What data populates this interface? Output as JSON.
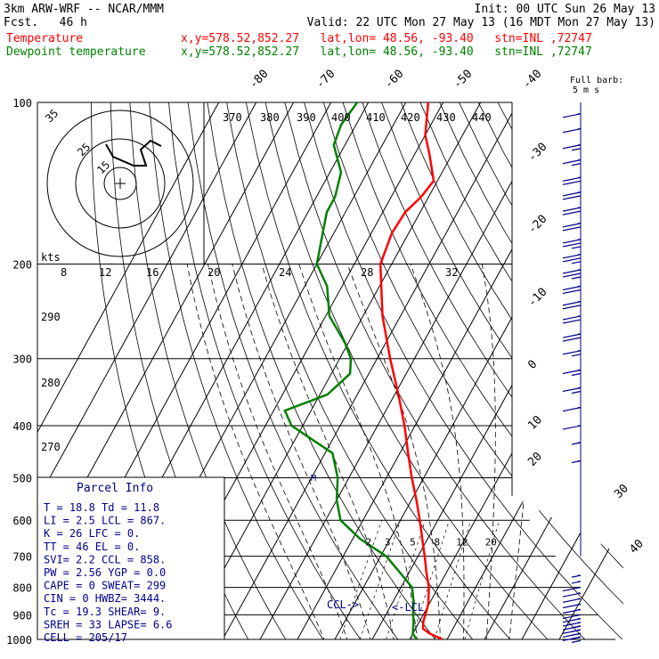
{
  "header": {
    "model_line": "3km ARW-WRF -- NCAR/MMM",
    "init_line": "Init: 00 UTC Sun 26 May 13",
    "fcst_line": "Fcst.   46 h",
    "valid_line": "Valid: 22 UTC Mon 27 May 13 (16 MDT Mon 27 May 13)",
    "temperature_label": "Temperature",
    "dewpoint_label": "Dewpoint temperature",
    "location_text": "x,y=578.52,852.27   lat,lon= 48.56, -93.40   stn=INL ,72747",
    "colors": {
      "temperature": "#ff0000",
      "dewpoint": "#008000",
      "text_blue": "#00008b"
    }
  },
  "chart_data": {
    "type": "line",
    "title": "Skew-T log-p sounding",
    "y_scale": "log",
    "pressure_ticks": [
      100,
      200,
      300,
      400,
      500,
      600,
      700,
      800,
      900,
      1000
    ],
    "temp_ticks_bottom": [
      -40,
      -30,
      -20,
      -10,
      0,
      10,
      20,
      30,
      40
    ],
    "temp_ticks_top": [
      -80,
      -70,
      -60,
      -50,
      -40
    ],
    "theta_e_labels": [
      "370",
      "380",
      "390",
      "400",
      "410",
      "420",
      "430",
      "440"
    ],
    "theta_labels": [
      "290",
      "280",
      "270"
    ],
    "mixing_ratio_labels": [
      "2",
      "3",
      "5",
      "8",
      "12",
      "20"
    ],
    "hodo_speed_labels": [
      "8",
      "12",
      "16",
      "20",
      "24",
      "28",
      "32"
    ],
    "hodo_ring_labels": [
      "35",
      "25",
      "15"
    ],
    "kts_label": "kts",
    "barb_legend": [
      "Full barb:",
      "5 m s"
    ],
    "ccl_label": "CCL->",
    "lcl_label": "<-LCL",
    "series": [
      {
        "name": "Temperature",
        "color": "#ff0000",
        "points": [
          {
            "p": 1000,
            "t": 18.8
          },
          {
            "p": 975,
            "t": 14.5
          },
          {
            "p": 955,
            "t": 12.0
          },
          {
            "p": 925,
            "t": 11.0
          },
          {
            "p": 900,
            "t": 10.6
          },
          {
            "p": 860,
            "t": 9.8
          },
          {
            "p": 800,
            "t": 7.5
          },
          {
            "p": 750,
            "t": 4.6
          },
          {
            "p": 700,
            "t": 1.8
          },
          {
            "p": 650,
            "t": -1.4
          },
          {
            "p": 600,
            "t": -4.8
          },
          {
            "p": 550,
            "t": -8.7
          },
          {
            "p": 500,
            "t": -13.2
          },
          {
            "p": 450,
            "t": -17.8
          },
          {
            "p": 400,
            "t": -22.8
          },
          {
            "p": 350,
            "t": -29.0
          },
          {
            "p": 300,
            "t": -36.5
          },
          {
            "p": 250,
            "t": -44.8
          },
          {
            "p": 200,
            "t": -53.0
          },
          {
            "p": 175,
            "t": -54.5
          },
          {
            "p": 160,
            "t": -54.0
          },
          {
            "p": 150,
            "t": -52.0
          },
          {
            "p": 140,
            "t": -51.0
          },
          {
            "p": 125,
            "t": -56.0
          },
          {
            "p": 115,
            "t": -60.0
          },
          {
            "p": 100,
            "t": -64.0
          }
        ]
      },
      {
        "name": "Dewpoint temperature",
        "color": "#008000",
        "points": [
          {
            "p": 1000,
            "t": 11.8
          },
          {
            "p": 975,
            "t": 10.0
          },
          {
            "p": 950,
            "t": 9.2
          },
          {
            "p": 925,
            "t": 8.4
          },
          {
            "p": 900,
            "t": 7.3
          },
          {
            "p": 850,
            "t": 5.5
          },
          {
            "p": 800,
            "t": 3.0
          },
          {
            "p": 750,
            "t": -2.5
          },
          {
            "p": 700,
            "t": -8.5
          },
          {
            "p": 650,
            "t": -18.0
          },
          {
            "p": 600,
            "t": -26.0
          },
          {
            "p": 550,
            "t": -30.0
          },
          {
            "p": 500,
            "t": -33.0
          },
          {
            "p": 450,
            "t": -38.0
          },
          {
            "p": 400,
            "t": -53.0
          },
          {
            "p": 375,
            "t": -57.0
          },
          {
            "p": 350,
            "t": -48.0
          },
          {
            "p": 320,
            "t": -45.0
          },
          {
            "p": 300,
            "t": -47.0
          },
          {
            "p": 280,
            "t": -51.0
          },
          {
            "p": 250,
            "t": -59.0
          },
          {
            "p": 220,
            "t": -64.0
          },
          {
            "p": 200,
            "t": -70.0
          },
          {
            "p": 175,
            "t": -73.0
          },
          {
            "p": 160,
            "t": -75.0
          },
          {
            "p": 150,
            "t": -75.0
          },
          {
            "p": 135,
            "t": -77.0
          },
          {
            "p": 120,
            "t": -83.0
          },
          {
            "p": 110,
            "t": -84.0
          },
          {
            "p": 100,
            "t": -83.0
          }
        ]
      }
    ],
    "wind_barbs": [
      {
        "p": 990,
        "full": 1,
        "half": 1
      },
      {
        "p": 975,
        "full": 1,
        "half": 1
      },
      {
        "p": 960,
        "full": 1,
        "half": 1
      },
      {
        "p": 945,
        "full": 1,
        "half": 1
      },
      {
        "p": 930,
        "full": 1,
        "half": 1
      },
      {
        "p": 915,
        "full": 1,
        "half": 0
      },
      {
        "p": 900,
        "full": 1,
        "half": 0
      },
      {
        "p": 880,
        "full": 1,
        "half": 0
      },
      {
        "p": 860,
        "full": 1,
        "half": 0
      },
      {
        "p": 840,
        "full": 1,
        "half": 0
      },
      {
        "p": 820,
        "full": 1,
        "half": 0
      },
      {
        "p": 800,
        "full": 1,
        "half": 0
      },
      {
        "p": 780,
        "full": 0,
        "half": 1
      },
      {
        "p": 760,
        "full": 0,
        "half": 1
      },
      {
        "p": 465,
        "full": 0,
        "half": 1
      },
      {
        "p": 430,
        "full": 0,
        "half": 1
      },
      {
        "p": 400,
        "full": 1,
        "half": 0
      },
      {
        "p": 370,
        "full": 1,
        "half": 0
      },
      {
        "p": 340,
        "full": 1,
        "half": 1
      },
      {
        "p": 315,
        "full": 1,
        "half": 1
      },
      {
        "p": 290,
        "full": 1,
        "half": 1
      },
      {
        "p": 270,
        "full": 2,
        "half": 0
      },
      {
        "p": 250,
        "full": 2,
        "half": 0
      },
      {
        "p": 235,
        "full": 2,
        "half": 0
      },
      {
        "p": 220,
        "full": 2,
        "half": 0
      },
      {
        "p": 205,
        "full": 2,
        "half": 1
      },
      {
        "p": 192,
        "full": 2,
        "half": 1
      },
      {
        "p": 180,
        "full": 2,
        "half": 1
      },
      {
        "p": 168,
        "full": 2,
        "half": 0
      },
      {
        "p": 157,
        "full": 2,
        "half": 0
      },
      {
        "p": 147,
        "full": 2,
        "half": 0
      },
      {
        "p": 138,
        "full": 2,
        "half": 0
      },
      {
        "p": 128,
        "full": 1,
        "half": 1
      },
      {
        "p": 120,
        "full": 1,
        "half": 1
      },
      {
        "p": 112,
        "full": 1,
        "half": 0
      },
      {
        "p": 105,
        "full": 1,
        "half": 0
      }
    ]
  },
  "parcel_info": {
    "title": "Parcel Info",
    "rows": [
      "T  =   18.8 Td =  11.8",
      "LI =    2.5 LCL =  867.",
      "K  =     26 LFC =    0.",
      "TT =     46 EL  =    0.",
      "SVI=    2.2 CCL = 858.",
      "PW =   2.56 YGP =  0.0",
      "CAPE =    0 SWEAT= 299",
      "CIN  =    0 HWBZ= 3444.",
      "Tc =   19.3 SHEAR=  9.",
      "SREH =   33 LAPSE= 6.6",
      "CELL = 205/17"
    ]
  }
}
